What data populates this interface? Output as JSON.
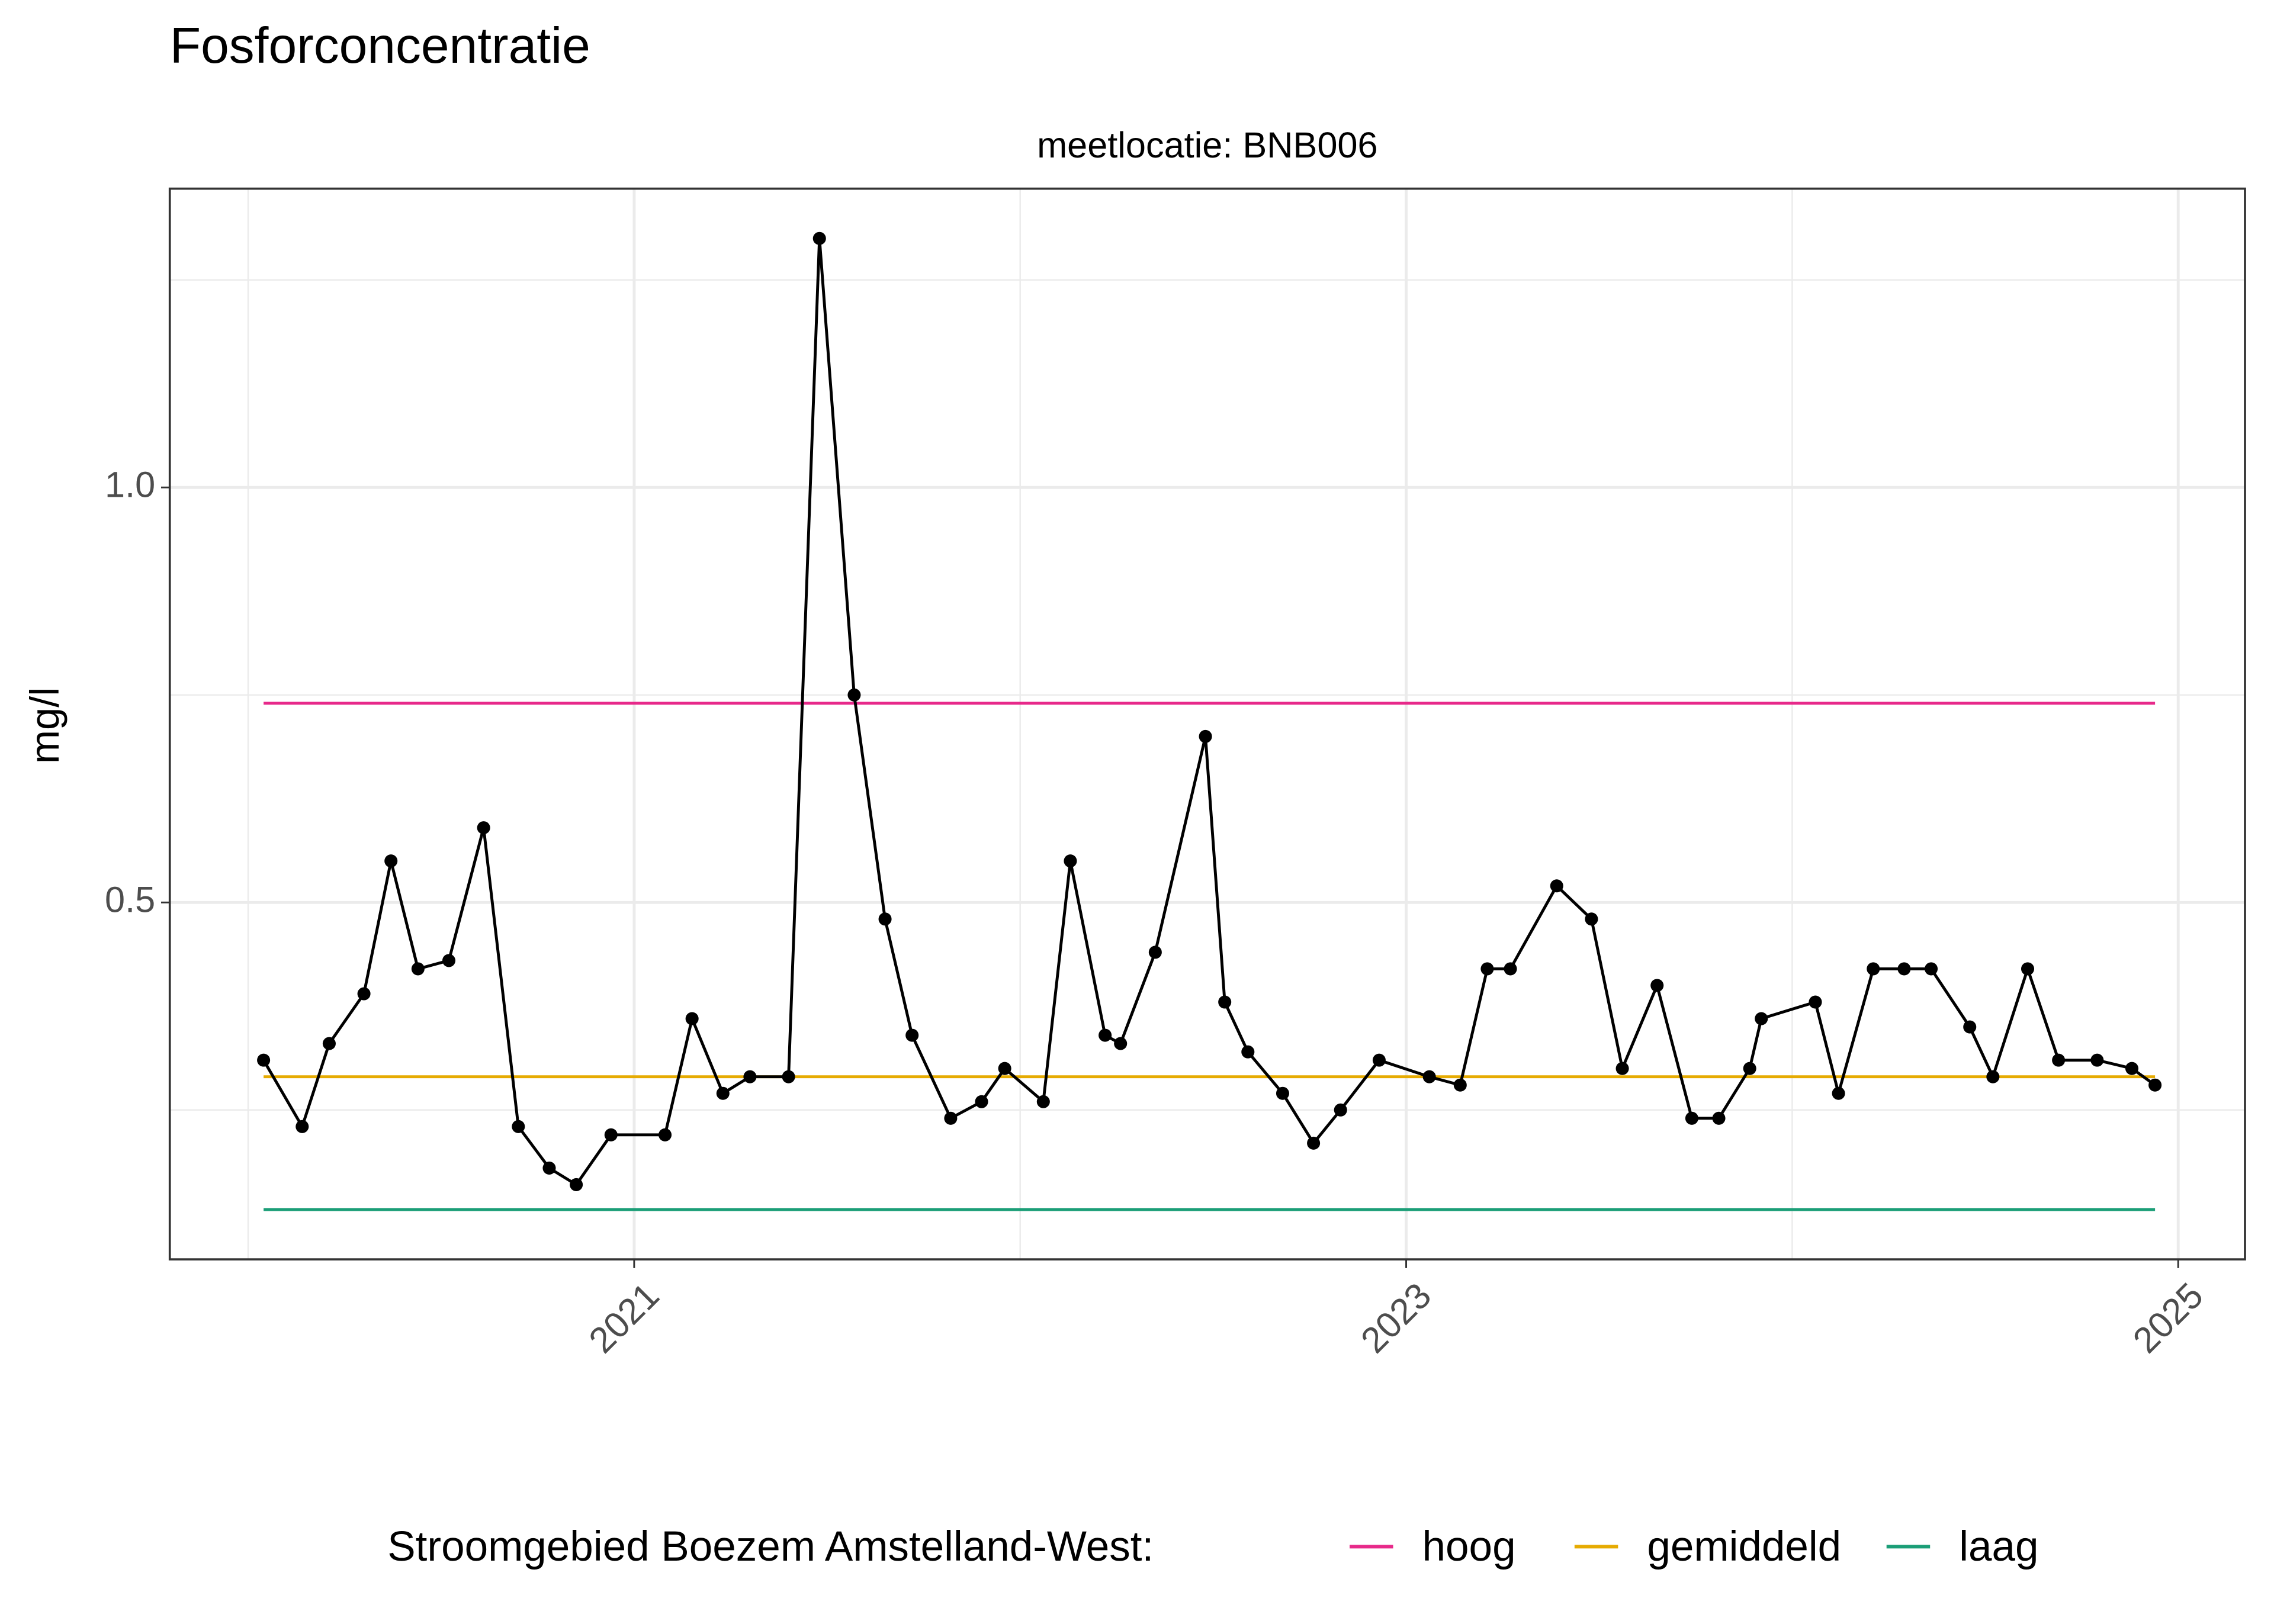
{
  "chart_data": {
    "type": "line",
    "title": "Fosforconcentratie",
    "subtitle": "meetlocatie: BNB006",
    "y_label": "mg/l",
    "legend_title": "Stroomgebied Boezem Amstelland-West:",
    "legend_position": "bottom",
    "color": "#000000",
    "x": [
      2020.04,
      2020.14,
      2020.21,
      2020.3,
      2020.37,
      2020.44,
      2020.52,
      2020.61,
      2020.7,
      2020.78,
      2020.85,
      2020.94,
      2021.08,
      2021.15,
      2021.23,
      2021.3,
      2021.4,
      2021.48,
      2021.57,
      2021.65,
      2021.72,
      2021.82,
      2021.9,
      2021.96,
      2022.06,
      2022.13,
      2022.22,
      2022.26,
      2022.35,
      2022.48,
      2022.53,
      2022.59,
      2022.68,
      2022.76,
      2022.83,
      2022.93,
      2023.06,
      2023.14,
      2023.21,
      2023.27,
      2023.39,
      2023.48,
      2023.56,
      2023.65,
      2023.74,
      2023.81,
      2023.89,
      2023.92,
      2024.06,
      2024.12,
      2024.21,
      2024.29,
      2024.36,
      2024.46,
      2024.52,
      2024.61,
      2024.69,
      2024.79,
      2024.88,
      2024.94
    ],
    "values": [
      0.31,
      0.23,
      0.33,
      0.39,
      0.55,
      0.42,
      0.43,
      0.59,
      0.23,
      0.18,
      0.16,
      0.22,
      0.22,
      0.36,
      0.27,
      0.29,
      0.29,
      1.3,
      0.75,
      0.48,
      0.34,
      0.24,
      0.26,
      0.3,
      0.26,
      0.55,
      0.34,
      0.33,
      0.44,
      0.7,
      0.38,
      0.32,
      0.27,
      0.21,
      0.25,
      0.31,
      0.29,
      0.28,
      0.42,
      0.42,
      0.52,
      0.48,
      0.3,
      0.4,
      0.24,
      0.24,
      0.3,
      0.36,
      0.38,
      0.27,
      0.42,
      0.42,
      0.42,
      0.35,
      0.29,
      0.42,
      0.31,
      0.31,
      0.3,
      0.28
    ],
    "series": [
      {
        "name": "hoog",
        "color": "#e7298a",
        "x": [
          2020.04,
          2024.94
        ],
        "values": [
          0.74,
          0.74
        ]
      },
      {
        "name": "gemiddeld",
        "color": "#e6ab02",
        "x": [
          2020.04,
          2024.94
        ],
        "values": [
          0.29,
          0.29
        ]
      },
      {
        "name": "laag",
        "color": "#1b9e77",
        "x": [
          2020.04,
          2024.94
        ],
        "values": [
          0.13,
          0.13
        ]
      }
    ],
    "xlim": [
      2019.797,
      2025.173
    ],
    "xticks": [
      2021,
      2023,
      2025
    ],
    "minor_xticks": [
      2020,
      2022,
      2024
    ],
    "ylim": [
      0.07,
      1.36
    ],
    "yticks": [
      0.5,
      {
        "value": 1,
        "label": "1.0"
      }
    ],
    "minor_yticks": [
      0.25,
      0.75,
      1.25
    ],
    "grid": true
  }
}
